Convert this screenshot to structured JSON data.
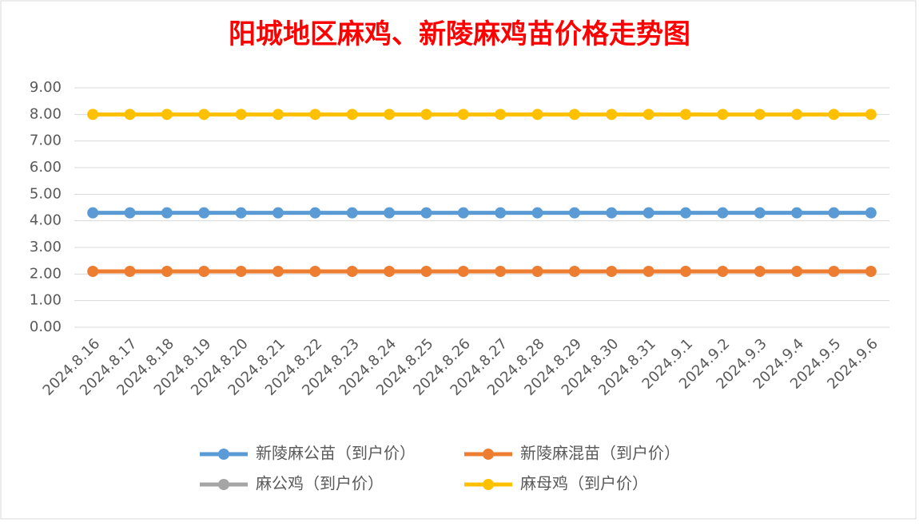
{
  "chart_data": {
    "type": "line",
    "title": "阳城地区麻鸡、新陵麻鸡苗价格走势图",
    "categories": [
      "2024.8.16",
      "2024.8.17",
      "2024.8.18",
      "2024.8.19",
      "2024.8.20",
      "2024.8.21",
      "2024.8.22",
      "2024.8.23",
      "2024.8.24",
      "2024.8.25",
      "2024.8.26",
      "2024.8.27",
      "2024.8.28",
      "2024.8.29",
      "2024.8.30",
      "2024.8.31",
      "2024.9.1",
      "2024.9.2",
      "2024.9.3",
      "2024.9.4",
      "2024.9.5",
      "2024.9.6"
    ],
    "series": [
      {
        "name": "新陵麻公苗（到户价）",
        "color": "#5b9bd5",
        "values": [
          4.3,
          4.3,
          4.3,
          4.3,
          4.3,
          4.3,
          4.3,
          4.3,
          4.3,
          4.3,
          4.3,
          4.3,
          4.3,
          4.3,
          4.3,
          4.3,
          4.3,
          4.3,
          4.3,
          4.3,
          4.3,
          4.3
        ]
      },
      {
        "name": "新陵麻混苗（到户价）",
        "color": "#ed7d31",
        "values": [
          2.1,
          2.1,
          2.1,
          2.1,
          2.1,
          2.1,
          2.1,
          2.1,
          2.1,
          2.1,
          2.1,
          2.1,
          2.1,
          2.1,
          2.1,
          2.1,
          2.1,
          2.1,
          2.1,
          2.1,
          2.1,
          2.1
        ]
      },
      {
        "name": "麻公鸡（到户价）",
        "color": "#a5a5a5",
        "values": [
          null,
          null,
          null,
          null,
          null,
          null,
          null,
          null,
          null,
          null,
          null,
          null,
          null,
          null,
          null,
          null,
          null,
          null,
          null,
          null,
          null,
          null
        ]
      },
      {
        "name": "麻母鸡（到户价）",
        "color": "#ffc000",
        "values": [
          8,
          8,
          8,
          8,
          8,
          8,
          8,
          8,
          8,
          8,
          8,
          8,
          8,
          8,
          8,
          8,
          8,
          8,
          8,
          8,
          8,
          8
        ]
      }
    ],
    "ylim": [
      0,
      9
    ],
    "yticks": [
      {
        "value": 0,
        "label": "0.00"
      },
      {
        "value": 1,
        "label": "1.00"
      },
      {
        "value": 2,
        "label": "2.00"
      },
      {
        "value": 3,
        "label": "3.00"
      },
      {
        "value": 4,
        "label": "4.00"
      },
      {
        "value": 5,
        "label": "5.00"
      },
      {
        "value": 6,
        "label": "6.00"
      },
      {
        "value": 7,
        "label": "7.00"
      },
      {
        "value": 8,
        "label": "8.00"
      },
      {
        "value": 9,
        "label": "9.00"
      }
    ],
    "grid": true,
    "legend": "bottom"
  }
}
